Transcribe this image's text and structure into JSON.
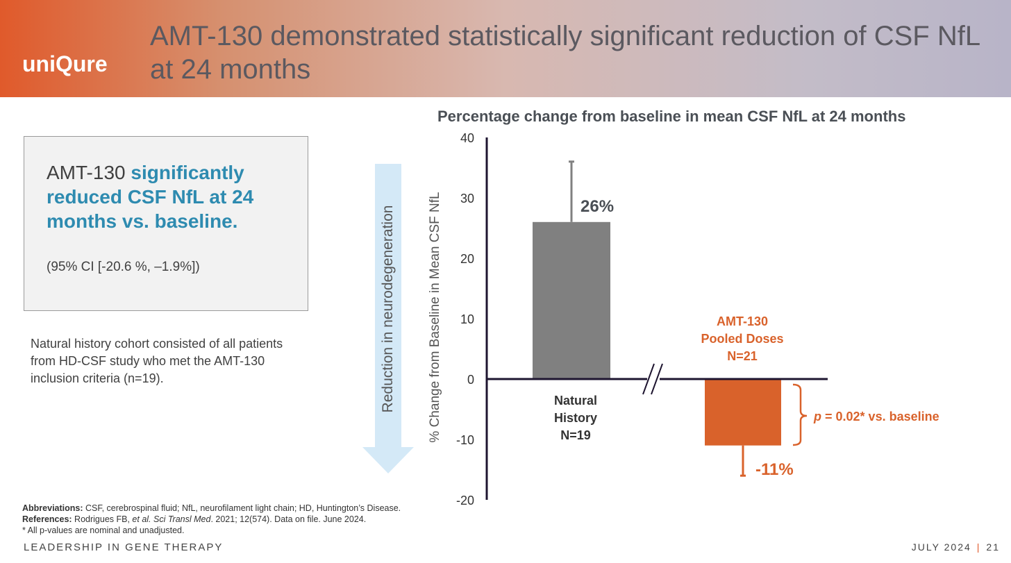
{
  "header": {
    "logo": "uniQure",
    "title": "AMT-130 demonstrated statistically significant reduction of CSF NfL at 24 months"
  },
  "callout": {
    "prefix": "AMT-130 ",
    "highlight": "significantly reduced CSF NfL at 24 months vs. baseline.",
    "ci": "(95% CI  [-20.6 %, –1.9%])"
  },
  "note": "Natural history cohort consisted of all patients from HD-CSF study who met the AMT-130 inclusion criteria (n=19).",
  "arrow_label": "Reduction in neurodegeneration",
  "chart_data": {
    "type": "bar",
    "title": "Percentage change from baseline in mean CSF NfL at 24 months",
    "ylabel": "% Change from Baseline in Mean CSF NfL",
    "ylim": [
      -20,
      40
    ],
    "yticks": [
      40,
      30,
      20,
      10,
      0,
      -10,
      -20
    ],
    "categories": [
      [
        "Natural",
        "History",
        "N=19"
      ],
      [
        "AMT-130",
        "Pooled Doses",
        "N=21"
      ]
    ],
    "values": [
      26,
      -11
    ],
    "error_upper": [
      36,
      -16
    ],
    "value_labels": [
      "26%",
      "-11%"
    ],
    "colors": [
      "#808080",
      "#d9622b"
    ],
    "annotation": {
      "p_italic": "p",
      "text": " = 0.02* vs. baseline"
    }
  },
  "footer": {
    "abbr_label": "Abbreviations:",
    "abbr": " CSF, cerebrospinal fluid; NfL, neurofilament light chain; HD, Huntington’s Disease.",
    "ref_label": "References:",
    "ref_a": " Rodrigues FB, ",
    "ref_i": "et al. Sci Transl Med",
    "ref_b": ". 2021; 12(574). Data on file. June 2024.",
    "pnote": "* All p-values are nominal and unadjusted.",
    "tagline": "LEADERSHIP IN GENE THERAPY",
    "date": "JULY 2024",
    "page": "21"
  }
}
